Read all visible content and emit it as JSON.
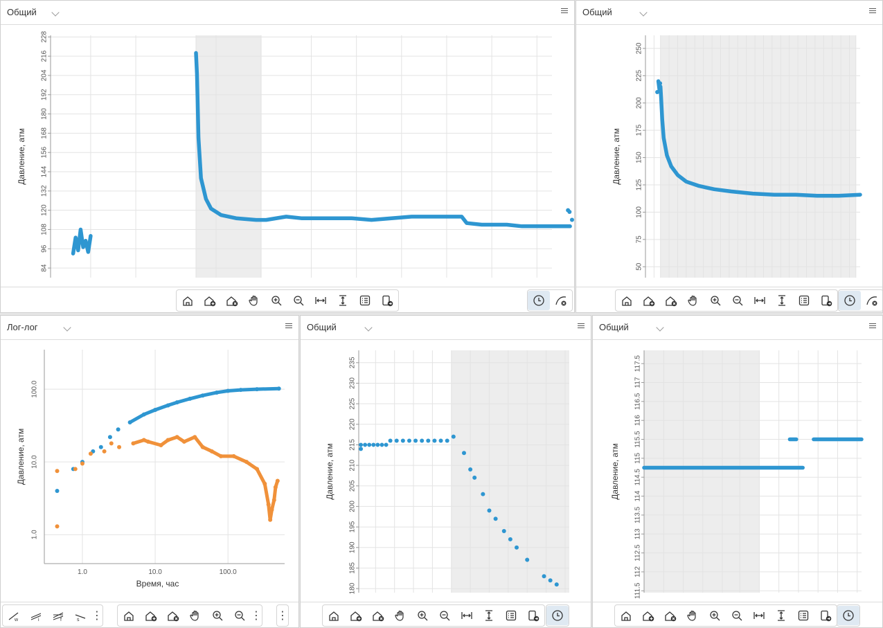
{
  "colors": {
    "series_main": "#2e96d1",
    "series_second": "#f0913a",
    "shade": "#ededed",
    "grid": "#e3e3e3",
    "axis": "#999999"
  },
  "panels": {
    "p1": {
      "title": "Общий"
    },
    "p2": {
      "title": "Общий"
    },
    "p3": {
      "title": "Лог-лог"
    },
    "p4": {
      "title": "Общий"
    },
    "p5": {
      "title": "Общий"
    }
  },
  "toolbar_icons": [
    "home-icon",
    "zoom-home-in-icon",
    "zoom-home-reset-icon",
    "pan-hand-icon",
    "zoom-in-icon",
    "zoom-out-icon",
    "fit-horizontal-icon",
    "fit-vertical-icon",
    "legend-list-icon",
    "export-icon"
  ],
  "loglog_toolbar_icons": [
    "home-icon",
    "zoom-home-in-icon",
    "zoom-home-reset-icon",
    "pan-hand-icon",
    "zoom-in-icon",
    "zoom-out-icon"
  ],
  "line_tools": [
    "w-line-tool-icon",
    "i-line-tool-icon",
    "f-line-tool-icon",
    "s-line-tool-icon"
  ],
  "chart_data": [
    {
      "id": "p1",
      "type": "scatter",
      "ylabel": "Давление, атм",
      "xlabel": "",
      "yticks": [
        84,
        96,
        108,
        120,
        132,
        144,
        156,
        168,
        180,
        192,
        204,
        216,
        228
      ],
      "ylim": [
        78,
        229
      ],
      "xlim": [
        0,
        100
      ],
      "grid": true,
      "shaded": [
        [
          29,
          42
        ]
      ],
      "xgrid": [
        8,
        17,
        29,
        33,
        42,
        52,
        61,
        70,
        79,
        88,
        97
      ],
      "series": [
        {
          "segments": [
            [
              [
                4.5,
                93
              ],
              [
                5,
                103
              ],
              [
                5.5,
                95
              ],
              [
                6,
                108
              ],
              [
                6.5,
                97
              ],
              [
                7,
                101
              ],
              [
                7.5,
                94
              ],
              [
                8,
                104
              ]
            ],
            [
              [
                29,
                218
              ],
              [
                29.2,
                205
              ],
              [
                29.5,
                165
              ],
              [
                30,
                140
              ],
              [
                31,
                127
              ],
              [
                32,
                121
              ],
              [
                34,
                117
              ],
              [
                37,
                115
              ],
              [
                41,
                114
              ],
              [
                43,
                114
              ],
              [
                47,
                116
              ],
              [
                50,
                115
              ],
              [
                55,
                115
              ],
              [
                60,
                115
              ],
              [
                64,
                114
              ],
              [
                68,
                115
              ],
              [
                72,
                116
              ],
              [
                77,
                116
              ],
              [
                82,
                116
              ],
              [
                83,
                112
              ],
              [
                86,
                111
              ],
              [
                91,
                111
              ],
              [
                94,
                110
              ],
              [
                97,
                110
              ],
              [
                100,
                110
              ],
              [
                102,
                110
              ],
              [
                103,
                110
              ],
              [
                103.6,
                110
              ]
            ]
          ],
          "extras": [
            [
              103.5,
              119
            ],
            [
              103.2,
              120
            ],
            [
              104,
              114
            ],
            [
              107,
              113
            ],
            [
              112,
              111
            ]
          ]
        }
      ]
    },
    {
      "id": "p2",
      "type": "scatter",
      "ylabel": "Давление, атм",
      "xlabel": "",
      "yticks": [
        50,
        75,
        100,
        125,
        150,
        175,
        200,
        225,
        250
      ],
      "ylim": [
        40,
        262
      ],
      "xlim": [
        0,
        100
      ],
      "grid": true,
      "shaded": [
        [
          7,
          98
        ]
      ],
      "xgrid": [
        4,
        7,
        11,
        15,
        19,
        23,
        27,
        31,
        35,
        39,
        43,
        47,
        51,
        55,
        59,
        63,
        67,
        71,
        75,
        79,
        83,
        87,
        91,
        95,
        98
      ],
      "series": [
        {
          "segments": [
            [
              [
                6,
                220
              ],
              [
                6.5,
                212
              ],
              [
                7,
                215
              ],
              [
                7.3,
                205
              ],
              [
                7.8,
                185
              ],
              [
                8.5,
                168
              ],
              [
                10,
                152
              ],
              [
                12,
                142
              ],
              [
                15,
                134
              ],
              [
                19,
                128
              ],
              [
                25,
                124
              ],
              [
                32,
                121
              ],
              [
                40,
                119
              ],
              [
                50,
                117
              ],
              [
                60,
                116
              ],
              [
                70,
                116
              ],
              [
                80,
                115
              ],
              [
                90,
                115
              ],
              [
                100,
                116
              ]
            ]
          ],
          "extras": [
            [
              5.5,
              210
            ],
            [
              6.8,
              218
            ]
          ]
        }
      ]
    },
    {
      "id": "p3",
      "type": "loglog",
      "ylabel": "Давление, атм",
      "xlabel": "Время, час",
      "xticks": [
        "1.0",
        "10.0",
        "100.0"
      ],
      "yticks": [
        "1.0",
        "10.0",
        "100.0"
      ],
      "grid": true,
      "series": [
        {
          "name": "",
          "points": [
            [
              0.45,
              4
            ],
            [
              0.75,
              8
            ],
            [
              1,
              10
            ],
            [
              1.4,
              14
            ],
            [
              1.8,
              16
            ],
            [
              2.4,
              22
            ],
            [
              3.1,
              28
            ],
            [
              4.5,
              35
            ],
            [
              7,
              45
            ],
            [
              10,
              52
            ],
            [
              15,
              60
            ],
            [
              20,
              66
            ],
            [
              30,
              74
            ],
            [
              45,
              82
            ],
            [
              70,
              90
            ],
            [
              100,
              95
            ],
            [
              150,
              98
            ],
            [
              250,
              100
            ],
            [
              500,
              102
            ]
          ]
        },
        {
          "name": "",
          "points": [
            [
              0.45,
              7.5
            ],
            [
              0.45,
              1.3
            ],
            [
              0.8,
              8
            ],
            [
              1,
              9.5
            ],
            [
              1.3,
              13
            ],
            [
              2,
              14
            ],
            [
              2.5,
              18
            ],
            [
              3.2,
              16
            ],
            [
              5,
              18
            ],
            [
              7,
              20
            ],
            [
              8,
              19
            ],
            [
              12,
              17
            ],
            [
              15,
              20
            ],
            [
              20,
              22
            ],
            [
              25,
              19
            ],
            [
              35,
              22
            ],
            [
              45,
              16
            ],
            [
              60,
              14
            ],
            [
              80,
              12
            ],
            [
              120,
              12
            ],
            [
              180,
              10
            ],
            [
              250,
              8
            ],
            [
              320,
              5
            ],
            [
              360,
              2.6
            ],
            [
              380,
              1.6
            ],
            [
              400,
              2.2
            ],
            [
              430,
              3
            ],
            [
              450,
              4.5
            ],
            [
              480,
              5.5
            ]
          ]
        }
      ]
    },
    {
      "id": "p4",
      "type": "scatter",
      "ylabel": "Давление, атм",
      "xlabel": "",
      "yticks": [
        180,
        185,
        190,
        195,
        200,
        205,
        210,
        215,
        220,
        225,
        230,
        235
      ],
      "ylim": [
        179,
        238
      ],
      "xlim": [
        0,
        100
      ],
      "grid": true,
      "shaded": [
        [
          44,
          100
        ]
      ],
      "xgrid": [
        8,
        17,
        26,
        35,
        44,
        53,
        62,
        71,
        80,
        89,
        98
      ],
      "series": [
        {
          "points": [
            [
              1,
              214
            ],
            [
              1,
              215
            ],
            [
              3,
              215
            ],
            [
              5,
              215
            ],
            [
              7,
              215
            ],
            [
              9,
              215
            ],
            [
              11,
              215
            ],
            [
              13,
              215
            ],
            [
              15,
              216
            ],
            [
              18,
              216
            ],
            [
              21,
              216
            ],
            [
              24,
              216
            ],
            [
              27,
              216
            ],
            [
              30,
              216
            ],
            [
              33,
              216
            ],
            [
              36,
              216
            ],
            [
              39,
              216
            ],
            [
              42,
              216
            ],
            [
              45,
              217
            ],
            [
              50,
              213
            ],
            [
              53,
              209
            ],
            [
              55,
              207
            ],
            [
              59,
              203
            ],
            [
              62,
              199
            ],
            [
              65,
              197
            ],
            [
              69,
              194
            ],
            [
              72,
              192
            ],
            [
              75,
              190
            ],
            [
              80,
              187
            ],
            [
              88,
              183
            ],
            [
              91,
              182
            ],
            [
              94,
              181
            ]
          ]
        }
      ]
    },
    {
      "id": "p5",
      "type": "scatter",
      "ylabel": "Давление, атм",
      "xlabel": "",
      "yticks": [
        "111.5",
        "112",
        "112.5",
        "113",
        "113.5",
        "114",
        "114.5",
        "115",
        "115.5",
        "116",
        "116.5",
        "117",
        "117.5"
      ],
      "ylim": [
        111.45,
        117.85
      ],
      "xlim": [
        0,
        100
      ],
      "grid": true,
      "shaded": [
        [
          0,
          53
        ]
      ],
      "xgrid": [
        9,
        18,
        27,
        36,
        44,
        53,
        62,
        71,
        80,
        89,
        98
      ],
      "series": [
        {
          "segments": [
            [
              [
                0,
                114.75
              ],
              [
                5,
                114.75
              ],
              [
                15,
                114.75
              ],
              [
                25,
                114.75
              ],
              [
                35,
                114.75
              ],
              [
                45,
                114.75
              ],
              [
                55,
                114.75
              ],
              [
                65,
                114.75
              ],
              [
                73,
                114.75
              ]
            ],
            [
              [
                67,
                115.5
              ],
              [
                70,
                115.5
              ]
            ],
            [
              [
                78,
                115.5
              ],
              [
                85,
                115.5
              ],
              [
                95,
                115.5
              ],
              [
                100,
                115.5
              ]
            ]
          ]
        }
      ]
    }
  ]
}
